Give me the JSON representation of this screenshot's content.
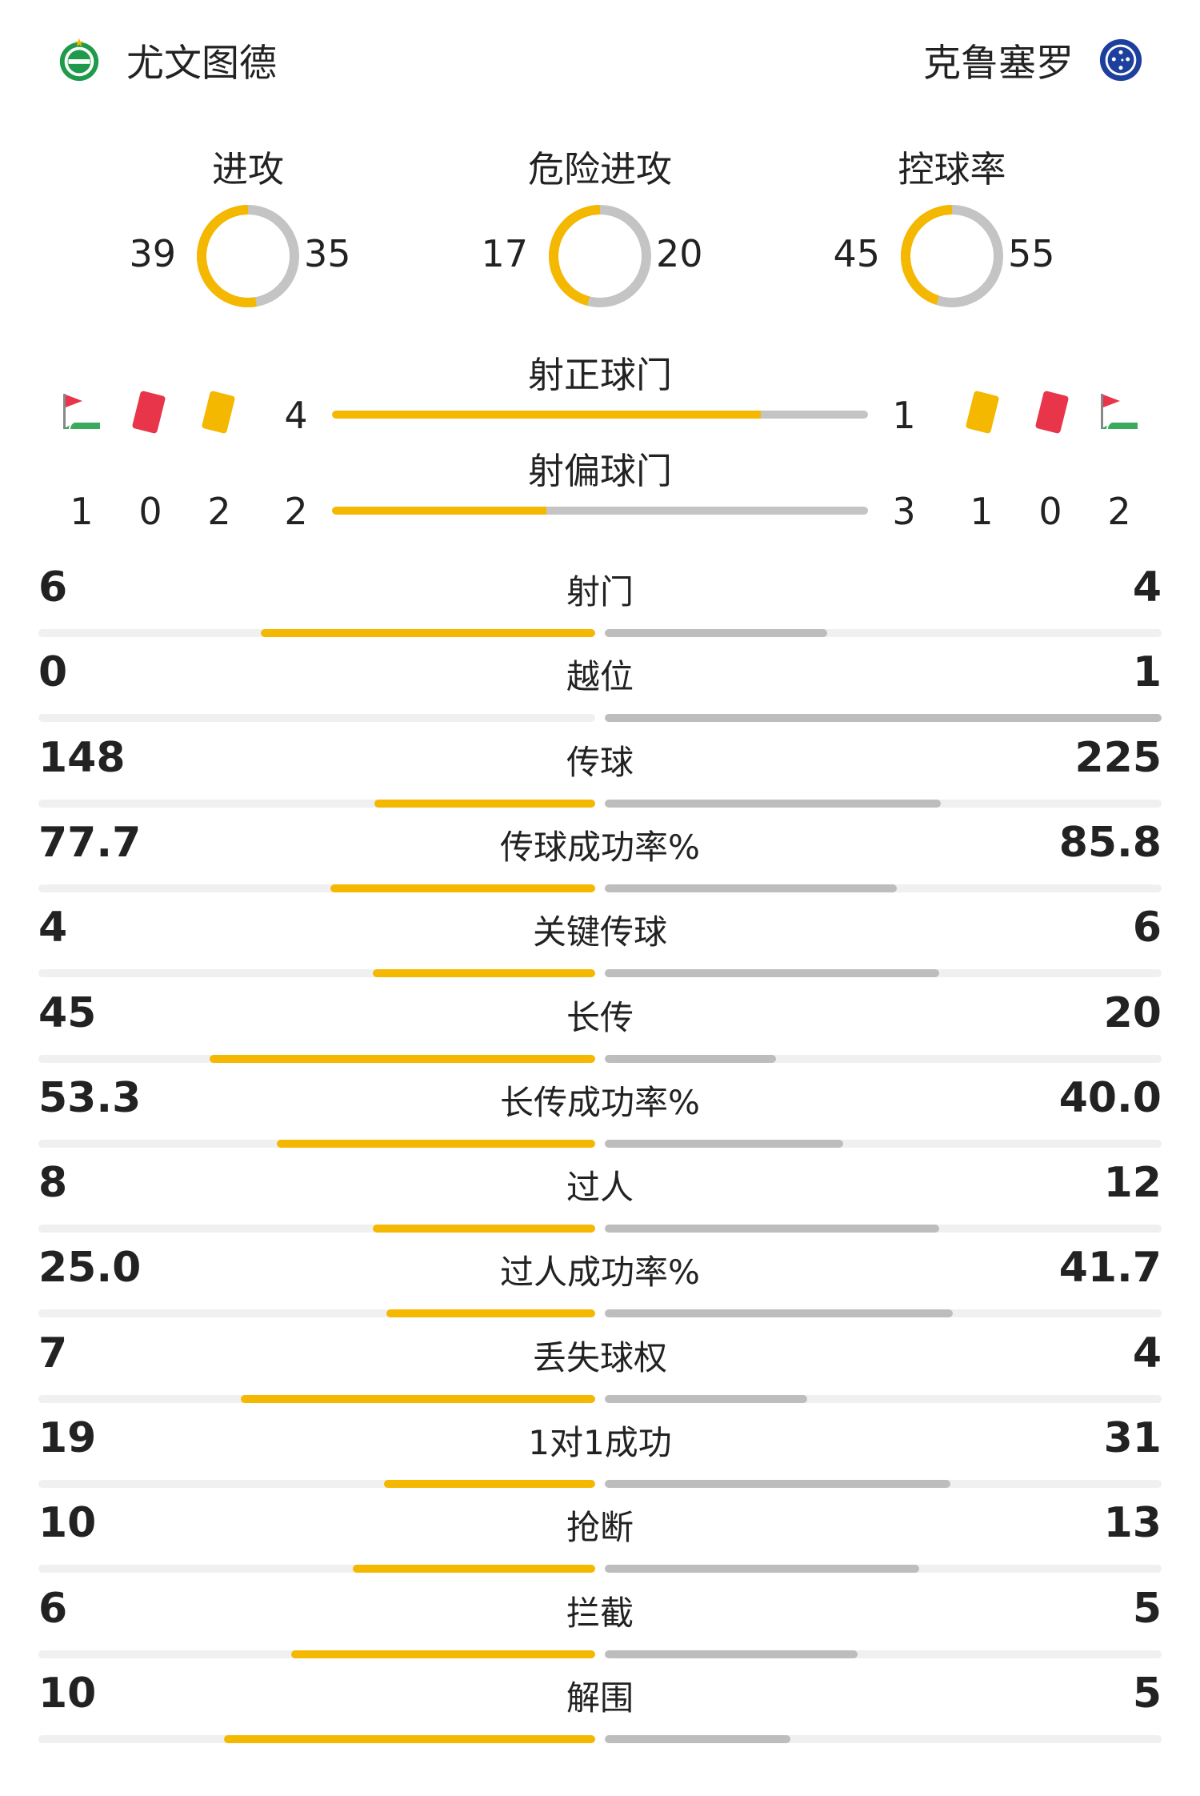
{
  "header": {
    "home_team": "尤文图德",
    "away_team": "克鲁塞罗",
    "home_logo_icon": "juventude-crest-icon",
    "away_logo_icon": "cruzeiro-crest-icon"
  },
  "colors": {
    "home": "#f5b800",
    "away": "#c4c4c4",
    "track": "#e3e3e3",
    "red_card": "#e8354a",
    "yellow_card": "#f5b800",
    "corner_flag": "#e8354a",
    "corner_ground": "#3aaa5c"
  },
  "donuts": [
    {
      "title": "进攻",
      "home": 39,
      "away": 35
    },
    {
      "title": "危险进攻",
      "home": 17,
      "away": 20
    },
    {
      "title": "控球率",
      "home": 45,
      "away": 55
    }
  ],
  "shots_on": {
    "title": "射正球门",
    "home": 4,
    "away": 1
  },
  "shots_off": {
    "title": "射偏球门",
    "home": 2,
    "away": 3
  },
  "cards": {
    "home": {
      "corners": 1,
      "red": 0,
      "yellow": 2
    },
    "away": {
      "yellow": 1,
      "red": 0,
      "corners": 2
    },
    "icons": [
      "corner-flag-icon",
      "red-card-icon",
      "yellow-card-icon"
    ]
  },
  "stats": [
    {
      "label": "射门",
      "home": "6",
      "away": "4"
    },
    {
      "label": "越位",
      "home": "0",
      "away": "1"
    },
    {
      "label": "传球",
      "home": "148",
      "away": "225"
    },
    {
      "label": "传球成功率%",
      "home": "77.7",
      "away": "85.8"
    },
    {
      "label": "关键传球",
      "home": "4",
      "away": "6"
    },
    {
      "label": "长传",
      "home": "45",
      "away": "20"
    },
    {
      "label": "长传成功率%",
      "home": "53.3",
      "away": "40.0"
    },
    {
      "label": "过人",
      "home": "8",
      "away": "12"
    },
    {
      "label": "过人成功率%",
      "home": "25.0",
      "away": "41.7"
    },
    {
      "label": "丢失球权",
      "home": "7",
      "away": "4"
    },
    {
      "label": "1对1成功",
      "home": "19",
      "away": "31"
    },
    {
      "label": "抢断",
      "home": "10",
      "away": "13"
    },
    {
      "label": "拦截",
      "home": "6",
      "away": "5"
    },
    {
      "label": "解围",
      "home": "10",
      "away": "5"
    }
  ]
}
